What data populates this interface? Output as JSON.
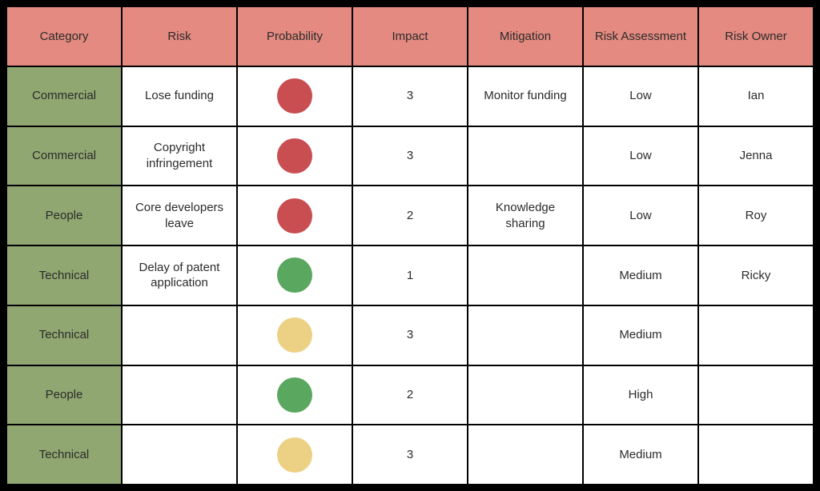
{
  "table": {
    "type": "table",
    "columns": [
      "Category",
      "Risk",
      "Probability",
      "Impact",
      "Mitigation",
      "Risk Assessment",
      "Risk Owner"
    ],
    "header_bg": "#e48a80",
    "header_text_color": "#2b2b2b",
    "category_cell_bg": "#90a771",
    "body_cell_bg": "#ffffff",
    "border_color": "#000000",
    "text_color": "#2b2b2b",
    "font_size": 15,
    "circle_colors": {
      "red": "#c94e52",
      "green": "#5aa760",
      "yellow": "#ecd185"
    },
    "circle_diameter": 44,
    "rows": [
      {
        "category": "Commercial",
        "risk": "Lose funding",
        "probability": "red",
        "impact": "3",
        "mitigation": "Monitor funding",
        "assessment": "Low",
        "owner": "Ian"
      },
      {
        "category": "Commercial",
        "risk": "Copyright infringement",
        "probability": "red",
        "impact": "3",
        "mitigation": "",
        "assessment": "Low",
        "owner": "Jenna"
      },
      {
        "category": "People",
        "risk": "Core developers leave",
        "probability": "red",
        "impact": "2",
        "mitigation": "Knowledge sharing",
        "assessment": "Low",
        "owner": "Roy"
      },
      {
        "category": "Technical",
        "risk": "Delay of patent application",
        "probability": "green",
        "impact": "1",
        "mitigation": "",
        "assessment": "Medium",
        "owner": "Ricky"
      },
      {
        "category": "Technical",
        "risk": "",
        "probability": "yellow",
        "impact": "3",
        "mitigation": "",
        "assessment": "Medium",
        "owner": ""
      },
      {
        "category": "People",
        "risk": "",
        "probability": "green",
        "impact": "2",
        "mitigation": "",
        "assessment": "High",
        "owner": ""
      },
      {
        "category": "Technical",
        "risk": "",
        "probability": "yellow",
        "impact": "3",
        "mitigation": "",
        "assessment": "Medium",
        "owner": ""
      }
    ]
  }
}
